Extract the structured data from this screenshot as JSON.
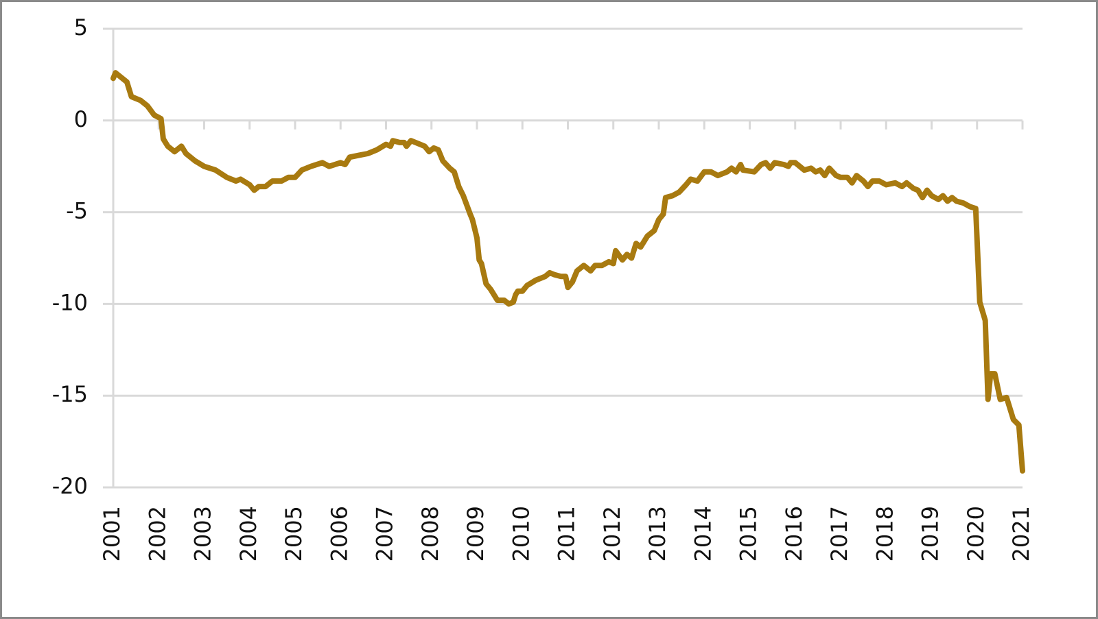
{
  "chart_data": {
    "type": "line",
    "color": "#a87a10",
    "grid": true,
    "xlim": [
      2001,
      2021
    ],
    "xticks": [
      2001,
      2002,
      2003,
      2004,
      2005,
      2006,
      2007,
      2008,
      2009,
      2010,
      2011,
      2012,
      2013,
      2014,
      2015,
      2016,
      2017,
      2018,
      2019,
      2020,
      2021
    ],
    "ylim": [
      -20,
      5
    ],
    "yticks": [
      5,
      0,
      -5,
      -10,
      -15,
      -20
    ],
    "x": [
      2001.0,
      2001.05,
      2001.3,
      2001.4,
      2001.6,
      2001.75,
      2001.9,
      2002.05,
      2002.1,
      2002.2,
      2002.35,
      2002.5,
      2002.6,
      2002.8,
      2003.0,
      2003.25,
      2003.5,
      2003.7,
      2003.8,
      2004.0,
      2004.1,
      2004.2,
      2004.35,
      2004.5,
      2004.7,
      2004.85,
      2005.0,
      2005.15,
      2005.35,
      2005.6,
      2005.75,
      2006.0,
      2006.1,
      2006.2,
      2006.4,
      2006.6,
      2006.8,
      2007.0,
      2007.1,
      2007.15,
      2007.3,
      2007.4,
      2007.45,
      2007.55,
      2007.75,
      2007.85,
      2007.95,
      2008.05,
      2008.15,
      2008.25,
      2008.4,
      2008.5,
      2008.6,
      2008.7,
      2008.85,
      2008.9,
      2009.0,
      2009.05,
      2009.1,
      2009.2,
      2009.3,
      2009.45,
      2009.6,
      2009.7,
      2009.8,
      2009.85,
      2009.9,
      2010.0,
      2010.1,
      2010.3,
      2010.5,
      2010.6,
      2010.7,
      2010.85,
      2010.95,
      2011.0,
      2011.1,
      2011.2,
      2011.35,
      2011.5,
      2011.6,
      2011.75,
      2011.9,
      2012.0,
      2012.05,
      2012.2,
      2012.3,
      2012.4,
      2012.5,
      2012.6,
      2012.75,
      2012.9,
      2013.0,
      2013.1,
      2013.15,
      2013.3,
      2013.45,
      2013.6,
      2013.7,
      2013.85,
      2014.0,
      2014.15,
      2014.3,
      2014.5,
      2014.6,
      2014.7,
      2014.8,
      2014.85,
      2015.1,
      2015.25,
      2015.35,
      2015.45,
      2015.55,
      2015.75,
      2015.85,
      2015.9,
      2016.0,
      2016.2,
      2016.35,
      2016.45,
      2016.55,
      2016.65,
      2016.75,
      2016.9,
      2017.0,
      2017.15,
      2017.25,
      2017.35,
      2017.5,
      2017.6,
      2017.7,
      2017.85,
      2018.0,
      2018.2,
      2018.35,
      2018.45,
      2018.6,
      2018.7,
      2018.8,
      2018.9,
      2019.0,
      2019.15,
      2019.25,
      2019.35,
      2019.45,
      2019.55,
      2019.7,
      2019.85,
      2019.97,
      2020.06,
      2020.18,
      2020.24,
      2020.3,
      2020.39,
      2020.51,
      2020.65,
      2020.8,
      2020.92,
      2021.0
    ],
    "values": [
      2.3,
      2.6,
      2.1,
      1.3,
      1.1,
      0.8,
      0.3,
      0.1,
      -1.0,
      -1.4,
      -1.7,
      -1.4,
      -1.8,
      -2.2,
      -2.5,
      -2.7,
      -3.1,
      -3.3,
      -3.2,
      -3.5,
      -3.8,
      -3.6,
      -3.6,
      -3.3,
      -3.3,
      -3.1,
      -3.1,
      -2.7,
      -2.5,
      -2.3,
      -2.5,
      -2.3,
      -2.4,
      -2.0,
      -1.9,
      -1.8,
      -1.6,
      -1.3,
      -1.4,
      -1.1,
      -1.2,
      -1.2,
      -1.4,
      -1.1,
      -1.3,
      -1.4,
      -1.7,
      -1.5,
      -1.6,
      -2.2,
      -2.6,
      -2.8,
      -3.6,
      -4.1,
      -5.1,
      -5.4,
      -6.4,
      -7.6,
      -7.8,
      -8.9,
      -9.2,
      -9.8,
      -9.8,
      -10.0,
      -9.9,
      -9.5,
      -9.3,
      -9.3,
      -9.0,
      -8.7,
      -8.5,
      -8.3,
      -8.4,
      -8.5,
      -8.5,
      -9.1,
      -8.8,
      -8.2,
      -7.9,
      -8.2,
      -7.9,
      -7.9,
      -7.7,
      -7.8,
      -7.1,
      -7.6,
      -7.3,
      -7.5,
      -6.7,
      -6.9,
      -6.3,
      -6.0,
      -5.4,
      -5.1,
      -4.2,
      -4.1,
      -3.9,
      -3.5,
      -3.2,
      -3.3,
      -2.8,
      -2.8,
      -3.0,
      -2.8,
      -2.6,
      -2.8,
      -2.4,
      -2.7,
      -2.8,
      -2.4,
      -2.3,
      -2.6,
      -2.3,
      -2.4,
      -2.5,
      -2.3,
      -2.3,
      -2.7,
      -2.6,
      -2.8,
      -2.7,
      -3.0,
      -2.6,
      -3.0,
      -3.1,
      -3.1,
      -3.4,
      -3.0,
      -3.3,
      -3.6,
      -3.3,
      -3.3,
      -3.5,
      -3.4,
      -3.6,
      -3.4,
      -3.7,
      -3.8,
      -4.2,
      -3.8,
      -4.1,
      -4.3,
      -4.1,
      -4.4,
      -4.2,
      -4.4,
      -4.5,
      -4.7,
      -4.8,
      -9.9,
      -10.9,
      -15.2,
      -13.8,
      -13.8,
      -15.2,
      -15.1,
      -16.3,
      -16.6,
      -19.1
    ]
  }
}
